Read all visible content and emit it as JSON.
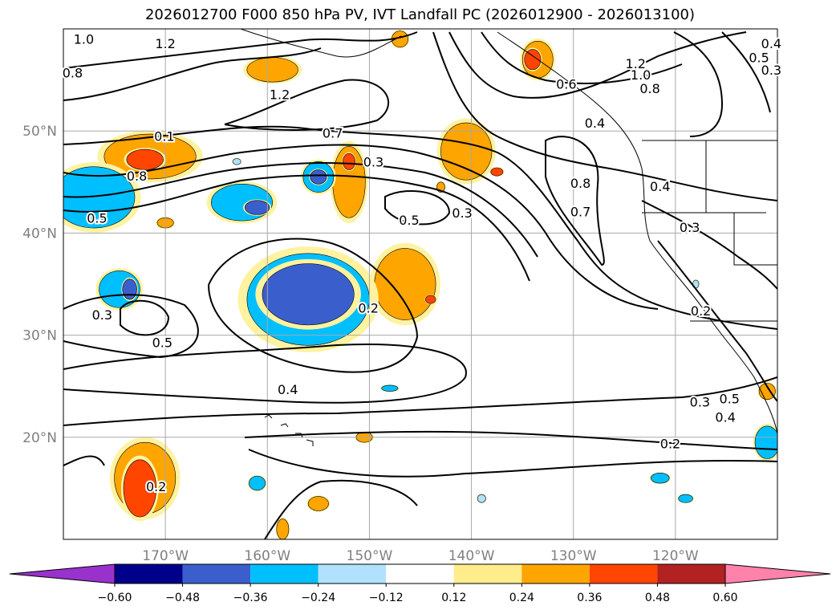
{
  "title": "2026012700 F000 850 hPa PV, IVT Landfall PC (2026012900 - 2026013100)",
  "map": {
    "lon_range": [
      -180,
      -110
    ],
    "lat_range": [
      10,
      60
    ],
    "lon_ticks": [
      {
        "value": -170,
        "label": "170°W"
      },
      {
        "value": -160,
        "label": "160°W"
      },
      {
        "value": -150,
        "label": "150°W"
      },
      {
        "value": -140,
        "label": "140°W"
      },
      {
        "value": -130,
        "label": "130°W"
      },
      {
        "value": -120,
        "label": "120°W"
      }
    ],
    "lat_ticks": [
      {
        "value": 20,
        "label": "20°N"
      },
      {
        "value": 30,
        "label": "30°N"
      },
      {
        "value": 40,
        "label": "40°N"
      },
      {
        "value": 50,
        "label": "50°N"
      }
    ],
    "grid": true
  },
  "colorbar": {
    "levels": [
      "-0.60",
      "-0.48",
      "-0.36",
      "-0.24",
      "-0.12",
      "0.12",
      "0.24",
      "0.36",
      "0.48",
      "0.60"
    ],
    "colors": [
      "#9932cc",
      "#00008b",
      "#3a5fcd",
      "#00bfff",
      "#b0e2ff",
      "#ffffff",
      "#ffec8b",
      "#ffa500",
      "#ff4500",
      "#b22222",
      "#ff82ab"
    ]
  },
  "contour_labels": [
    {
      "text": "1.0",
      "lon": -178.0,
      "lat": 59.0
    },
    {
      "text": "1.2",
      "lon": -170.0,
      "lat": 58.6
    },
    {
      "text": "0.8",
      "lon": -179.1,
      "lat": 55.7
    },
    {
      "text": "1.2",
      "lon": -158.8,
      "lat": 53.6
    },
    {
      "text": "0.1",
      "lon": -170.1,
      "lat": 49.5
    },
    {
      "text": "0.7",
      "lon": -153.6,
      "lat": 49.8
    },
    {
      "text": "0.8",
      "lon": -172.8,
      "lat": 45.6
    },
    {
      "text": "0.3",
      "lon": -149.6,
      "lat": 47.0
    },
    {
      "text": "0.5",
      "lon": -176.7,
      "lat": 41.5
    },
    {
      "text": "0.5",
      "lon": -146.1,
      "lat": 41.3
    },
    {
      "text": "0.3",
      "lon": -140.9,
      "lat": 42.0
    },
    {
      "text": "0.6",
      "lon": -130.7,
      "lat": 54.6
    },
    {
      "text": "0.4",
      "lon": -127.9,
      "lat": 50.8
    },
    {
      "text": "1.2",
      "lon": -123.9,
      "lat": 56.6
    },
    {
      "text": "1.0",
      "lon": -123.4,
      "lat": 55.5
    },
    {
      "text": "0.8",
      "lon": -122.5,
      "lat": 54.2
    },
    {
      "text": "0.8",
      "lon": -129.3,
      "lat": 44.9
    },
    {
      "text": "0.7",
      "lon": -129.3,
      "lat": 42.1
    },
    {
      "text": "0.4",
      "lon": -121.5,
      "lat": 44.6
    },
    {
      "text": "0.3",
      "lon": -118.6,
      "lat": 40.6
    },
    {
      "text": "0.2",
      "lon": -117.5,
      "lat": 32.4
    },
    {
      "text": "0.3",
      "lon": -176.2,
      "lat": 32.0
    },
    {
      "text": "0.5",
      "lon": -170.3,
      "lat": 29.3
    },
    {
      "text": "0.2",
      "lon": -150.1,
      "lat": 32.7
    },
    {
      "text": "0.4",
      "lon": -158.0,
      "lat": 24.7
    },
    {
      "text": "0.3",
      "lon": -117.6,
      "lat": 23.5
    },
    {
      "text": "0.4",
      "lon": -115.1,
      "lat": 22.0
    },
    {
      "text": "0.5",
      "lon": -114.7,
      "lat": 23.8
    },
    {
      "text": "0.2",
      "lon": -120.5,
      "lat": 19.4
    },
    {
      "text": "0.2",
      "lon": -170.9,
      "lat": 15.2
    },
    {
      "text": "0.4",
      "lon": -110.6,
      "lat": 58.6
    },
    {
      "text": "0.5",
      "lon": -111.8,
      "lat": 57.2
    },
    {
      "text": "0.3",
      "lon": -110.6,
      "lat": 56.0
    }
  ],
  "pv_patches": [
    {
      "color": "#ffa500",
      "lon": -171.5,
      "lat": 47.5,
      "rx": 4.5,
      "ry": 2.2
    },
    {
      "color": "#ff4500",
      "lon": -172.0,
      "lat": 47.2,
      "rx": 1.8,
      "ry": 1.0
    },
    {
      "color": "#ffa500",
      "lon": -159.5,
      "lat": 56.0,
      "rx": 2.5,
      "ry": 1.2
    },
    {
      "color": "#ffa500",
      "lon": -152.0,
      "lat": 45.0,
      "rx": 1.6,
      "ry": 3.5
    },
    {
      "color": "#ff4500",
      "lon": -152.0,
      "lat": 47.0,
      "rx": 0.6,
      "ry": 0.8
    },
    {
      "color": "#ffa500",
      "lon": -140.5,
      "lat": 48.0,
      "rx": 2.5,
      "ry": 2.8
    },
    {
      "color": "#ff4500",
      "lon": -137.5,
      "lat": 46.0,
      "rx": 0.6,
      "ry": 0.4
    },
    {
      "color": "#ffa500",
      "lon": -133.5,
      "lat": 57.0,
      "rx": 1.5,
      "ry": 1.8
    },
    {
      "color": "#ff4500",
      "lon": -134.0,
      "lat": 57.0,
      "rx": 0.8,
      "ry": 1.0
    },
    {
      "color": "#ffa500",
      "lon": -146.5,
      "lat": 35.0,
      "rx": 3.0,
      "ry": 3.5
    },
    {
      "color": "#ff4500",
      "lon": -144.0,
      "lat": 33.5,
      "rx": 0.5,
      "ry": 0.4
    },
    {
      "color": "#ffa500",
      "lon": -147.0,
      "lat": 59.0,
      "rx": 0.8,
      "ry": 0.8
    },
    {
      "color": "#ffa500",
      "lon": -172.0,
      "lat": 16.0,
      "rx": 3.0,
      "ry": 3.5
    },
    {
      "color": "#ff4500",
      "lon": -172.5,
      "lat": 15.0,
      "rx": 1.6,
      "ry": 2.8
    },
    {
      "color": "#ffa500",
      "lon": -150.5,
      "lat": 20.0,
      "rx": 0.8,
      "ry": 0.5
    },
    {
      "color": "#ffa500",
      "lon": -155.0,
      "lat": 13.5,
      "rx": 1.0,
      "ry": 0.7
    },
    {
      "color": "#ffa500",
      "lon": -158.5,
      "lat": 11.0,
      "rx": 0.6,
      "ry": 1.0
    },
    {
      "color": "#ffa500",
      "lon": -170.0,
      "lat": 41.0,
      "rx": 0.8,
      "ry": 0.5
    },
    {
      "color": "#ffa500",
      "lon": -111.0,
      "lat": 24.5,
      "rx": 0.8,
      "ry": 0.8
    },
    {
      "color": "#ffa500",
      "lon": -143.0,
      "lat": 44.5,
      "rx": 0.4,
      "ry": 0.5
    },
    {
      "color": "#00bfff",
      "lon": -177.0,
      "lat": 43.5,
      "rx": 4.0,
      "ry": 3.0
    },
    {
      "color": "#00bfff",
      "lon": -162.5,
      "lat": 43.0,
      "rx": 3.0,
      "ry": 1.8
    },
    {
      "color": "#3a5fcd",
      "lon": -161.0,
      "lat": 42.5,
      "rx": 1.2,
      "ry": 0.7
    },
    {
      "color": "#00bfff",
      "lon": -155.0,
      "lat": 45.5,
      "rx": 1.5,
      "ry": 1.5
    },
    {
      "color": "#3a5fcd",
      "lon": -155.0,
      "lat": 45.5,
      "rx": 0.8,
      "ry": 0.7
    },
    {
      "color": "#00bfff",
      "lon": -156.0,
      "lat": 33.5,
      "rx": 6.0,
      "ry": 4.5
    },
    {
      "color": "#3a5fcd",
      "lon": -156.0,
      "lat": 34.0,
      "rx": 4.5,
      "ry": 3.0
    },
    {
      "color": "#00bfff",
      "lon": -174.5,
      "lat": 34.5,
      "rx": 2.0,
      "ry": 1.8
    },
    {
      "color": "#3a5fcd",
      "lon": -173.5,
      "lat": 34.5,
      "rx": 0.7,
      "ry": 1.0
    },
    {
      "color": "#00bfff",
      "lon": -111.0,
      "lat": 19.5,
      "rx": 1.2,
      "ry": 1.6
    },
    {
      "color": "#00bfff",
      "lon": -121.5,
      "lat": 16.0,
      "rx": 0.9,
      "ry": 0.5
    },
    {
      "color": "#00bfff",
      "lon": -119.0,
      "lat": 14.0,
      "rx": 0.7,
      "ry": 0.4
    },
    {
      "color": "#00bfff",
      "lon": -161.0,
      "lat": 15.5,
      "rx": 0.8,
      "ry": 0.7
    },
    {
      "color": "#00bfff",
      "lon": -148.0,
      "lat": 24.8,
      "rx": 0.8,
      "ry": 0.3
    },
    {
      "color": "#b0e2ff",
      "lon": -118.0,
      "lat": 35.0,
      "rx": 0.3,
      "ry": 0.4
    },
    {
      "color": "#b0e2ff",
      "lon": -163.0,
      "lat": 47.0,
      "rx": 0.4,
      "ry": 0.3
    },
    {
      "color": "#b0e2ff",
      "lon": -139.0,
      "lat": 14.0,
      "rx": 0.4,
      "ry": 0.4
    }
  ]
}
